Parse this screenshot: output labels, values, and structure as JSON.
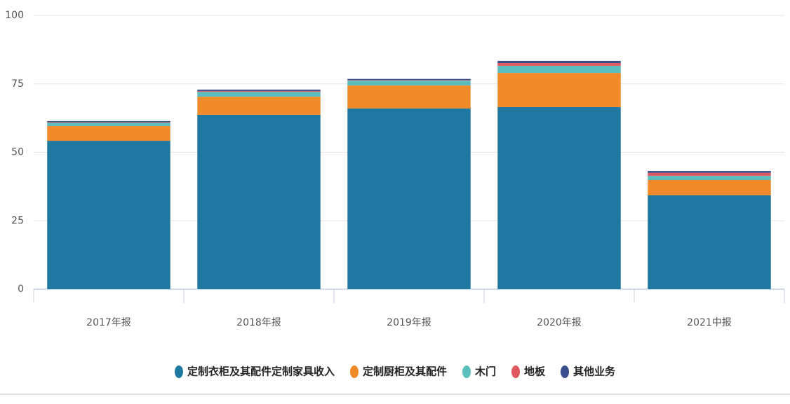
{
  "chart_data": {
    "type": "bar",
    "stacked": true,
    "categories": [
      "2017年报",
      "2018年报",
      "2019年报",
      "2020年报",
      "2021中报"
    ],
    "series": [
      {
        "name": "定制衣柜及其配件定制家具收入",
        "color": "#1f78a0",
        "values": [
          54.2,
          63.7,
          66.0,
          66.5,
          34.3
        ]
      },
      {
        "name": "定制厨柜及其配件",
        "color": "#f28a2a",
        "values": [
          5.4,
          6.6,
          8.4,
          12.5,
          5.6
        ]
      },
      {
        "name": "木门",
        "color": "#5bbdbd",
        "values": [
          1.2,
          1.8,
          1.8,
          2.6,
          1.5
        ]
      },
      {
        "name": "地板",
        "color": "#e0585f",
        "values": [
          0.2,
          0.3,
          0.2,
          1.0,
          1.1
        ]
      },
      {
        "name": "其他业务",
        "color": "#3a4d8c",
        "values": [
          0.4,
          0.5,
          0.4,
          0.8,
          0.7
        ]
      }
    ],
    "ylim": [
      0,
      100
    ],
    "yticks": [
      0,
      25,
      50,
      75,
      100
    ],
    "grid": true
  }
}
